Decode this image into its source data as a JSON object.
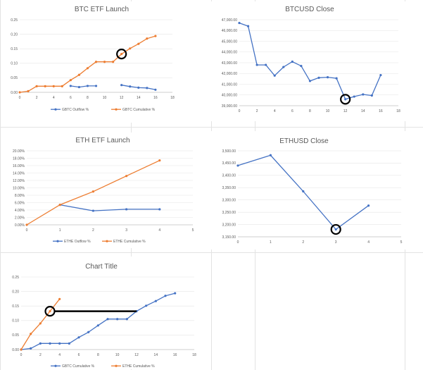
{
  "colors": {
    "blue": "#4472c4",
    "orange": "#ed7d31",
    "annotation": "#000000"
  },
  "chart_data": [
    {
      "type": "line",
      "title": "BTC ETF Launch",
      "xlim": [
        0,
        18
      ],
      "xticks": [
        "0",
        "2",
        "4",
        "6",
        "8",
        "10",
        "12",
        "14",
        "16",
        "18"
      ],
      "ylim": [
        0,
        0.25
      ],
      "yticks": [
        "0.00",
        "0.05",
        "0.10",
        "0.15",
        "0.20",
        "0.25"
      ],
      "grid": true,
      "legend": "bottom",
      "series": [
        {
          "name": "GBTC Outflow %",
          "color": "blue",
          "segments": [
            [
              [
                6,
                0.022
              ],
              [
                7,
                0.018
              ],
              [
                8,
                0.022
              ],
              [
                9,
                0.022
              ]
            ],
            [
              [
                12,
                0.025
              ],
              [
                13,
                0.02
              ],
              [
                14,
                0.016
              ],
              [
                15,
                0.015
              ],
              [
                16,
                0.009
              ]
            ]
          ]
        },
        {
          "name": "GBTC Cumulative %",
          "color": "orange",
          "segments": [
            [
              [
                0,
                0
              ],
              [
                1,
                0.004
              ],
              [
                2,
                0.021
              ],
              [
                3,
                0.021
              ],
              [
                4,
                0.021
              ],
              [
                5,
                0.021
              ],
              [
                6,
                0.042
              ],
              [
                7,
                0.06
              ],
              [
                8,
                0.083
              ],
              [
                9,
                0.105
              ],
              [
                10,
                0.105
              ],
              [
                11,
                0.105
              ],
              [
                12,
                0.132
              ],
              [
                13,
                0.151
              ],
              [
                14,
                0.167
              ],
              [
                15,
                0.185
              ],
              [
                16,
                0.194
              ]
            ]
          ]
        }
      ],
      "annotations": [
        {
          "type": "circle",
          "x": 12,
          "y": 0.132
        }
      ]
    },
    {
      "type": "line",
      "title": "BTCUSD Close",
      "xlim": [
        0,
        18
      ],
      "xticks": [
        "0",
        "2",
        "4",
        "6",
        "8",
        "10",
        "12",
        "14",
        "16",
        "18"
      ],
      "ylim": [
        39000,
        47000
      ],
      "yticks": [
        "39,000.00",
        "40,000.00",
        "41,000.00",
        "42,000.00",
        "43,000.00",
        "44,000.00",
        "45,000.00",
        "46,000.00",
        "47,000.00"
      ],
      "grid": true,
      "series": [
        {
          "color": "blue",
          "segments": [
            [
              [
                0,
                46700
              ],
              [
                1,
                46400
              ],
              [
                2,
                42800
              ],
              [
                3,
                42800
              ],
              [
                4,
                41800
              ],
              [
                5,
                42600
              ],
              [
                6,
                43100
              ],
              [
                7,
                42700
              ],
              [
                8,
                41300
              ],
              [
                9,
                41600
              ],
              [
                10,
                41650
              ],
              [
                11,
                41550
              ],
              [
                12,
                39600
              ],
              [
                13,
                39850
              ],
              [
                14,
                40050
              ],
              [
                15,
                39950
              ],
              [
                16,
                41850
              ]
            ]
          ]
        }
      ],
      "annotations": [
        {
          "type": "circle",
          "x": 12,
          "y": 39600
        }
      ]
    },
    {
      "type": "line",
      "title": "ETH ETF Launch",
      "xlim": [
        0,
        5
      ],
      "xticks": [
        "0",
        "1",
        "2",
        "3",
        "4",
        "5"
      ],
      "ylim": [
        0,
        0.2
      ],
      "yticks": [
        "0.00%",
        "2.00%",
        "4.00%",
        "6.00%",
        "8.00%",
        "10.00%",
        "12.00%",
        "14.00%",
        "16.00%",
        "18.00%",
        "20.00%"
      ],
      "grid": true,
      "legend": "bottom",
      "series": [
        {
          "name": "ETHE Outflow %",
          "color": "blue",
          "segments": [
            [
              [
                1,
                0.054
              ],
              [
                2,
                0.038
              ],
              [
                3,
                0.042
              ],
              [
                4,
                0.042
              ]
            ]
          ]
        },
        {
          "name": "ETHE Cumulative %",
          "color": "orange",
          "segments": [
            [
              [
                0,
                0
              ],
              [
                1,
                0.054
              ],
              [
                2,
                0.09
              ],
              [
                3,
                0.132
              ],
              [
                4,
                0.174
              ]
            ]
          ]
        }
      ]
    },
    {
      "type": "line",
      "title": "ETHUSD Close",
      "xlim": [
        0,
        5
      ],
      "xticks": [
        "0",
        "1",
        "2",
        "3",
        "4",
        "5"
      ],
      "ylim": [
        3150,
        3500
      ],
      "yticks": [
        "3,150.00",
        "3,200.00",
        "3,250.00",
        "3,300.00",
        "3,350.00",
        "3,400.00",
        "3,450.00",
        "3,500.00"
      ],
      "grid": true,
      "series": [
        {
          "color": "blue",
          "segments": [
            [
              [
                0,
                3440
              ],
              [
                1,
                3482
              ],
              [
                2,
                3335
              ],
              [
                3,
                3180
              ],
              [
                4,
                3277
              ]
            ]
          ]
        }
      ],
      "annotations": [
        {
          "type": "circle",
          "x": 3,
          "y": 3180
        }
      ]
    },
    {
      "type": "line",
      "title": "Chart Title",
      "xlim": [
        0,
        18
      ],
      "xticks": [
        "0",
        "2",
        "4",
        "6",
        "8",
        "10",
        "12",
        "14",
        "16",
        "18"
      ],
      "ylim": [
        0,
        0.25
      ],
      "yticks": [
        "0.00",
        "0.05",
        "0.10",
        "0.15",
        "0.20",
        "0.25"
      ],
      "grid": true,
      "legend": "bottom",
      "series": [
        {
          "name": "GBTC Cumulative %",
          "color": "blue",
          "segments": [
            [
              [
                0,
                0
              ],
              [
                1,
                0.004
              ],
              [
                2,
                0.021
              ],
              [
                3,
                0.021
              ],
              [
                4,
                0.021
              ],
              [
                5,
                0.021
              ],
              [
                6,
                0.042
              ],
              [
                7,
                0.06
              ],
              [
                8,
                0.083
              ],
              [
                9,
                0.105
              ],
              [
                10,
                0.105
              ],
              [
                11,
                0.105
              ],
              [
                12,
                0.132
              ],
              [
                13,
                0.151
              ],
              [
                14,
                0.167
              ],
              [
                15,
                0.185
              ],
              [
                16,
                0.194
              ]
            ]
          ]
        },
        {
          "name": "ETHE Cumulative %",
          "color": "orange",
          "segments": [
            [
              [
                0,
                0
              ],
              [
                1,
                0.054
              ],
              [
                2,
                0.09
              ],
              [
                3,
                0.132
              ],
              [
                4,
                0.174
              ]
            ]
          ]
        }
      ],
      "annotations": [
        {
          "type": "circle",
          "x": 3,
          "y": 0.132
        },
        {
          "type": "hline",
          "x1": 3,
          "x2": 12,
          "y": 0.132
        }
      ]
    }
  ]
}
